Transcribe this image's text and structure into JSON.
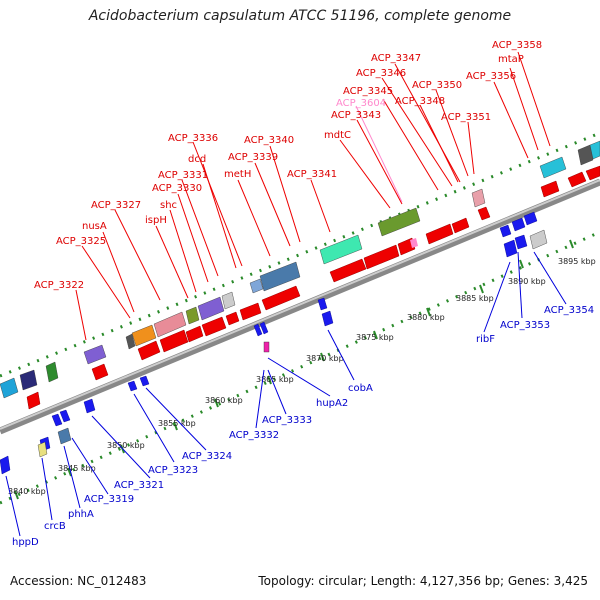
{
  "title": "Acidobacterium capsulatum ATCC 51196, complete genome",
  "footer": {
    "accession": "Accession: NC_012483",
    "topology": "Topology: circular; Length: 4,127,356 bp; Genes: 3,425"
  },
  "colors": {
    "forward": "#ff0000",
    "reverse": "#0000dd",
    "pink_gene": "#ff88cc",
    "backbone": "#999999",
    "tick": "#2a8a2a"
  },
  "kbp_labels": [
    "3840 kbp",
    "3845 kbp",
    "3850 kbp",
    "3855 kbp",
    "3860 kbp",
    "3865 kbp",
    "3870 kbp",
    "3875 kbp",
    "3880 kbp",
    "3885 kbp",
    "3890 kbp",
    "3895 kbp"
  ],
  "forward_labels": [
    "ACP_3322",
    "ACP_3325",
    "nusA",
    "ACP_3327",
    "ispH",
    "shc",
    "ACP_3330",
    "ACP_3331",
    "dcd",
    "ACP_3336",
    "metH",
    "ACP_3339",
    "ACP_3340",
    "ACP_3341",
    "mdtC",
    "ACP_3343",
    "ACP_3604",
    "ACP_3345",
    "ACP_3346",
    "ACP_3347",
    "ACP_3348",
    "ACP_3350",
    "ACP_3351",
    "ACP_3356",
    "mtaP",
    "ACP_3358"
  ],
  "reverse_labels": [
    "hppD",
    "crcB",
    "phhA",
    "ACP_3319",
    "ACP_3321",
    "ACP_3323",
    "ACP_3324",
    "ACP_3332",
    "ACP_3333",
    "hupA2",
    "cobA",
    "ribF",
    "ACP_3353",
    "ACP_3354"
  ]
}
